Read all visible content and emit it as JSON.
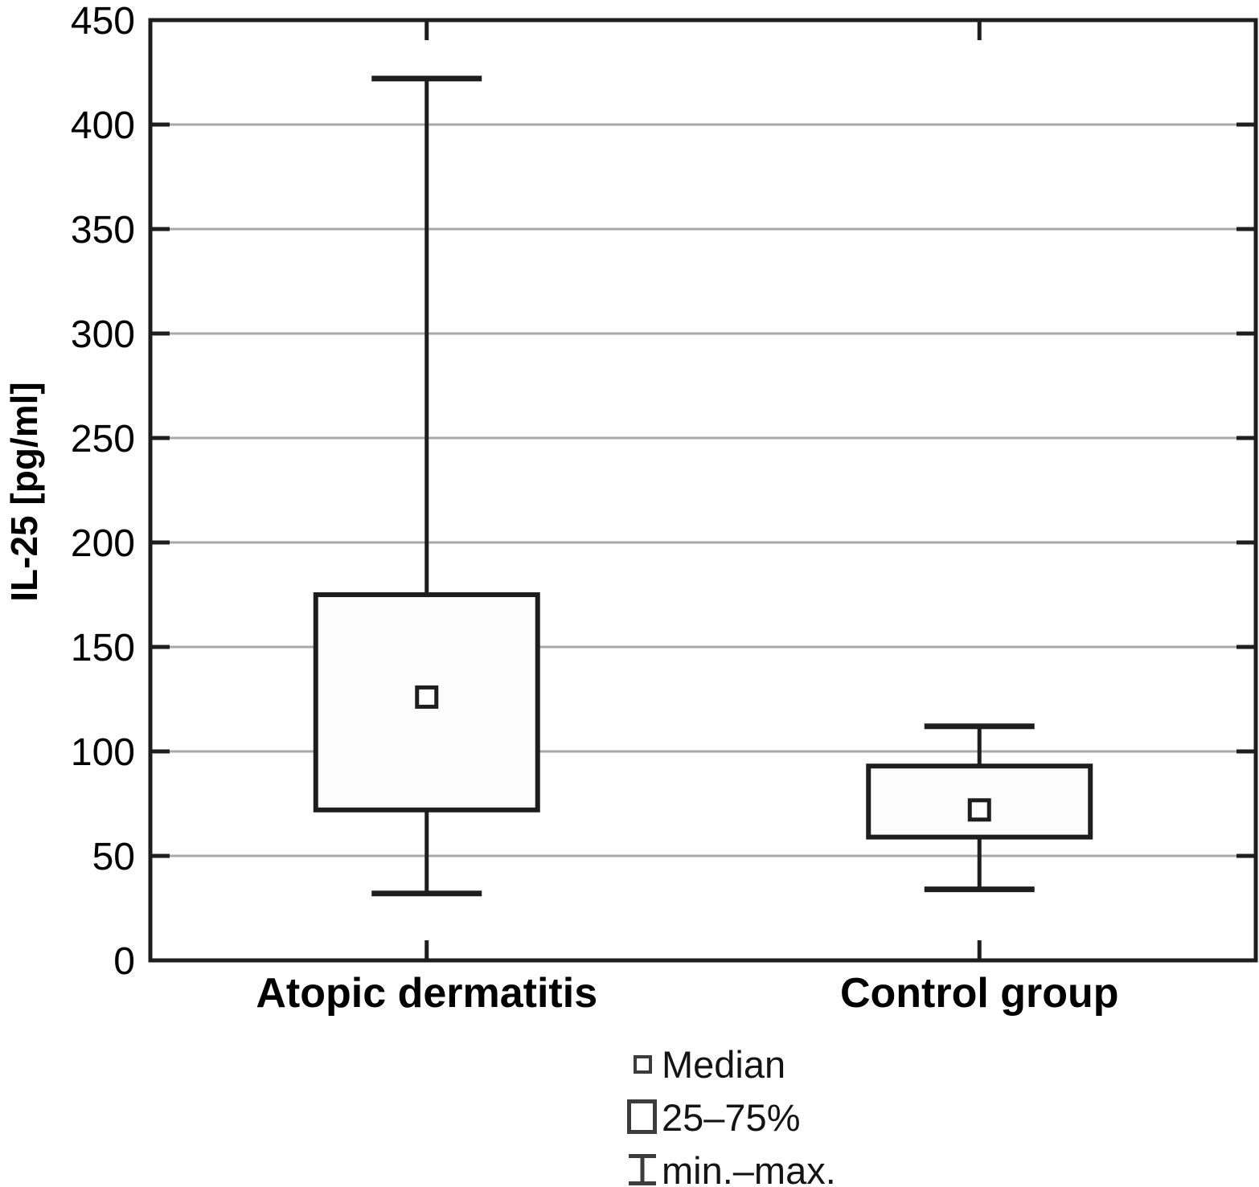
{
  "figure": {
    "background": "#ffffff"
  },
  "chart_data": {
    "type": "boxplot",
    "title": "",
    "ylabel": "IL-25 [pg/ml]",
    "xlabel": "",
    "ylim": [
      0,
      450
    ],
    "yticks": [
      0,
      50,
      100,
      150,
      200,
      250,
      300,
      350,
      400,
      450
    ],
    "grid": true,
    "legend_position": "bottom",
    "categories": [
      "Atopic dermatitis",
      "Control group"
    ],
    "series": [
      {
        "name": "Atopic dermatitis",
        "whisker_min": 32,
        "q1": 72,
        "median": 126,
        "q3": 175,
        "whisker_max": 422
      },
      {
        "name": "Control group",
        "whisker_min": 34,
        "q1": 59,
        "median": 72,
        "q3": 93,
        "whisker_max": 112
      }
    ],
    "legend": [
      {
        "symbol": "median-square-icon",
        "label": "Median"
      },
      {
        "symbol": "box-range-icon",
        "label": "25–75%"
      },
      {
        "symbol": "min-max-whisker-icon",
        "label": "min.–max."
      }
    ],
    "colors": {
      "line": "#1e1e1e",
      "grid": "#a8a8a8",
      "box_fill": "#fcfcfc",
      "marker_fill": "#ffffff",
      "legend_symbol": "#3c3c3c",
      "text": "#000000"
    }
  }
}
